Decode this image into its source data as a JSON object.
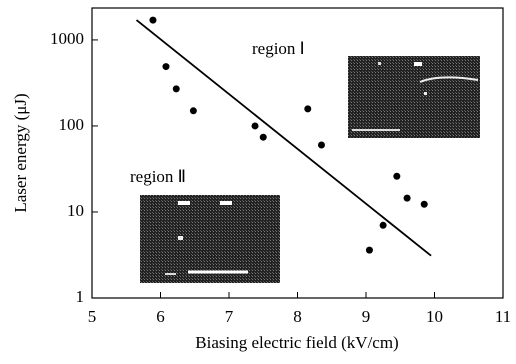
{
  "chart_data": {
    "type": "scatter",
    "xlabel": "Biasing electric field (kV/cm)",
    "ylabel": "Laser energy (μJ)",
    "x": [
      5.89,
      6.08,
      6.23,
      6.48,
      7.38,
      7.5,
      8.15,
      8.35,
      9.45,
      9.6,
      9.85,
      9.25,
      9.05
    ],
    "values": [
      1700,
      490,
      270,
      150,
      100,
      74,
      158,
      60,
      26,
      14.5,
      12.3,
      7,
      3.6
    ],
    "color": "#000000",
    "fit_line": {
      "x": [
        5.65,
        9.95
      ],
      "values": [
        1700,
        3.1
      ]
    },
    "annotations": [
      "region Ⅰ",
      "region Ⅱ"
    ],
    "xlim": [
      5,
      11
    ],
    "xticks": [
      5,
      6,
      7,
      8,
      9,
      10,
      11
    ],
    "ylim": [
      1,
      2350
    ],
    "yticks": [
      1,
      10,
      100,
      1000
    ],
    "log_y": true,
    "grid": false
  }
}
